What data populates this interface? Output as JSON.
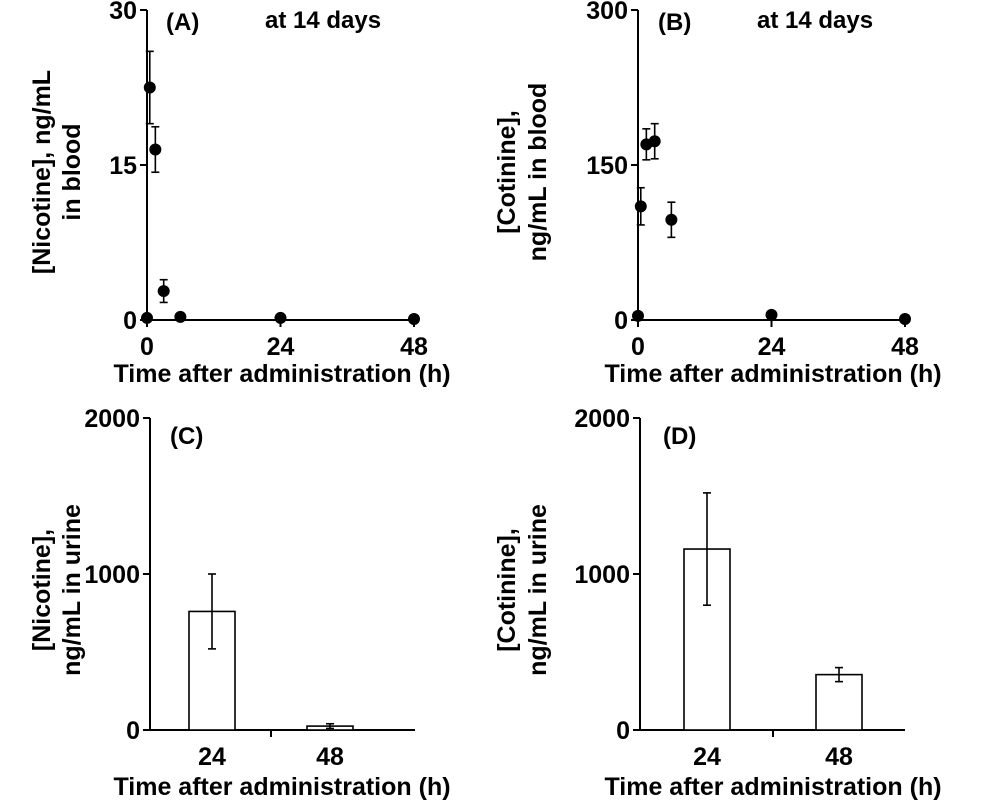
{
  "chart_data": [
    {
      "id": "A",
      "type": "scatter",
      "panel_label": "(A)",
      "annotation": "at 14 days",
      "title": "",
      "xlabel": "Time after administration (h)",
      "ylabel_lines": [
        "[Nicotine], ng/mL",
        "in blood"
      ],
      "xlim": [
        0,
        48
      ],
      "ylim": [
        0,
        30
      ],
      "xticks": [
        "0",
        "24",
        "48"
      ],
      "yticks": [
        "0",
        "15",
        "30"
      ],
      "points": [
        {
          "x": 0,
          "y": 0.2,
          "err": 0
        },
        {
          "x": 0.5,
          "y": 22.5,
          "err": 3.5
        },
        {
          "x": 1.5,
          "y": 16.5,
          "err": 2.2
        },
        {
          "x": 3,
          "y": 2.8,
          "err": 1.1
        },
        {
          "x": 6,
          "y": 0.3,
          "err": 0
        },
        {
          "x": 24,
          "y": 0.2,
          "err": 0
        },
        {
          "x": 48,
          "y": 0.1,
          "err": 0
        }
      ]
    },
    {
      "id": "B",
      "type": "scatter",
      "panel_label": "(B)",
      "annotation": "at 14 days",
      "title": "",
      "xlabel": "Time after administration (h)",
      "ylabel_lines": [
        "[Cotinine],",
        "ng/mL in blood"
      ],
      "xlim": [
        0,
        48
      ],
      "ylim": [
        0,
        300
      ],
      "xticks": [
        "0",
        "24",
        "48"
      ],
      "yticks": [
        "0",
        "150",
        "300"
      ],
      "points": [
        {
          "x": 0,
          "y": 4,
          "err": 0
        },
        {
          "x": 0.5,
          "y": 110,
          "err": 18
        },
        {
          "x": 1.5,
          "y": 170,
          "err": 15
        },
        {
          "x": 3,
          "y": 173,
          "err": 17
        },
        {
          "x": 6,
          "y": 97,
          "err": 17
        },
        {
          "x": 24,
          "y": 5,
          "err": 0
        },
        {
          "x": 48,
          "y": 1,
          "err": 0
        }
      ]
    },
    {
      "id": "C",
      "type": "bar",
      "panel_label": "(C)",
      "title": "",
      "xlabel": "Time after administration (h)",
      "ylabel_lines": [
        "[Nicotine],",
        "ng/mL in urine"
      ],
      "categories": [
        "24",
        "48"
      ],
      "values": [
        760,
        25
      ],
      "errors": [
        240,
        15
      ],
      "ylim": [
        0,
        2000
      ],
      "yticks": [
        "0",
        "1000",
        "2000"
      ]
    },
    {
      "id": "D",
      "type": "bar",
      "panel_label": "(D)",
      "title": "",
      "xlabel": "Time after administration (h)",
      "ylabel_lines": [
        "[Cotinine],",
        "ng/mL in urine"
      ],
      "categories": [
        "24",
        "48"
      ],
      "values": [
        1160,
        355
      ],
      "errors": [
        360,
        45
      ],
      "ylim": [
        0,
        2000
      ],
      "yticks": [
        "0",
        "1000",
        "2000"
      ]
    }
  ]
}
